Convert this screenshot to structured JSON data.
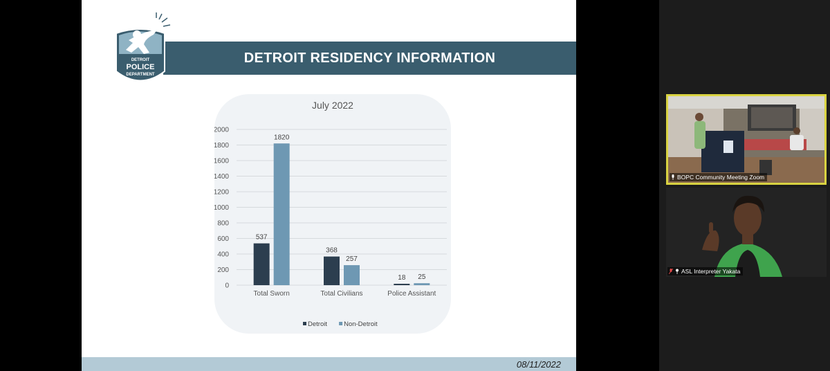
{
  "slide": {
    "title": "DETROIT RESIDENCY INFORMATION",
    "footer_date": "08/11/2022",
    "logo": {
      "line1": "DETROIT",
      "line2": "POLICE",
      "line3": "DEPARTMENT"
    }
  },
  "chart_data": {
    "type": "bar",
    "title": "July 2022",
    "categories": [
      "Total Sworn",
      "Total Civilians",
      "Police Assistant"
    ],
    "series": [
      {
        "name": "Detroit",
        "values": [
          537,
          368,
          18
        ],
        "color": "#2c3e4f"
      },
      {
        "name": "Non-Detroit",
        "values": [
          1820,
          257,
          25
        ],
        "color": "#6e98b3"
      }
    ],
    "ylim": [
      0,
      2000
    ],
    "yticks": [
      0,
      200,
      400,
      600,
      800,
      1000,
      1200,
      1400,
      1600,
      1800,
      2000
    ],
    "grid": true,
    "legend": "bottom"
  },
  "participants": [
    {
      "name": "BOPC Community Meeting Zoom",
      "muted": false,
      "active_speaker": true
    },
    {
      "name": "ASL Interpreter Yakata",
      "muted": true,
      "active_speaker": false
    }
  ],
  "colors": {
    "title_band": "#3a5d6e",
    "active_speaker_border": "#d9d341",
    "footer_bar": "#b3cad6"
  }
}
